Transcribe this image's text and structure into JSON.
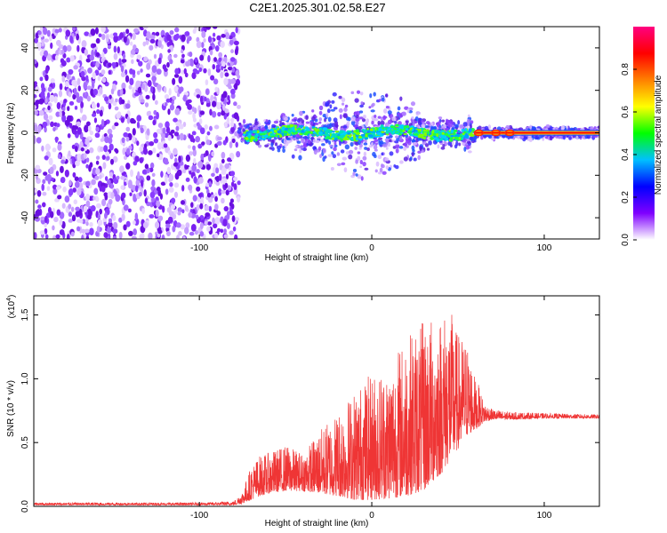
{
  "title": "C2E1.2025.301.02.58.E27",
  "chart_data": [
    {
      "type": "heatmap",
      "name": "spectrogram",
      "xlabel": "Height of straight line (km)",
      "ylabel": "Frequency (Hz)",
      "xlim": [
        -196,
        132
      ],
      "ylim": [
        -50,
        50
      ],
      "xticks": [
        -100,
        0,
        100
      ],
      "xtick_labels": [
        "-100",
        "0",
        "100"
      ],
      "yticks": [
        -40,
        -20,
        0,
        20,
        40
      ],
      "ytick_labels": [
        "-40",
        "-20",
        "0",
        "20",
        "40"
      ],
      "noise_region": [
        -196,
        -77
      ],
      "signal_region": [
        -77,
        132
      ],
      "signal_center_hz": 0,
      "colorbar": {
        "label": "Normalized spectral amplitude",
        "range": [
          0,
          1
        ],
        "ticks": [
          0.0,
          0.2,
          0.4,
          0.6,
          0.8
        ],
        "tick_labels": [
          "0.0",
          "0.2",
          "0.4",
          "0.6",
          "0.8"
        ],
        "colors": [
          "#ffffff",
          "#7f00ff",
          "#0000ff",
          "#00c0ff",
          "#00ff00",
          "#ffff00",
          "#ff8000",
          "#ff0000",
          "#ff0080"
        ]
      }
    },
    {
      "type": "line",
      "name": "snr",
      "xlabel": "Height of straight line (km)",
      "ylabel": "SNR (10 * v/v)",
      "multiplier": "(x10",
      "multiplier_exp": "4",
      "multiplier_close": ")",
      "xlim": [
        -196,
        132
      ],
      "ylim": [
        0,
        1.65
      ],
      "xticks": [
        -100,
        0,
        100
      ],
      "xtick_labels": [
        "-100",
        "0",
        "100"
      ],
      "yticks": [
        0.0,
        0.5,
        1.0,
        1.5
      ],
      "ytick_labels": [
        "0.0",
        "0.5",
        "1.0",
        "1.5"
      ],
      "line_color": "#ef3535",
      "envelope": {
        "x": [
          -196,
          -100,
          -80,
          -75,
          -70,
          -65,
          -60,
          -50,
          -40,
          -30,
          -20,
          -10,
          0,
          10,
          20,
          30,
          40,
          45,
          50,
          55,
          60,
          62,
          65,
          70,
          80,
          100,
          132
        ],
        "lo": [
          0.01,
          0.01,
          0.01,
          0.02,
          0.05,
          0.08,
          0.1,
          0.12,
          0.12,
          0.1,
          0.08,
          0.05,
          0.05,
          0.06,
          0.08,
          0.12,
          0.25,
          0.35,
          0.45,
          0.55,
          0.6,
          0.62,
          0.66,
          0.68,
          0.68,
          0.69,
          0.69
        ],
        "hi": [
          0.03,
          0.03,
          0.04,
          0.12,
          0.32,
          0.4,
          0.42,
          0.48,
          0.42,
          0.6,
          0.75,
          0.92,
          1.05,
          1.12,
          1.35,
          1.45,
          1.52,
          1.58,
          1.35,
          1.3,
          1.0,
          0.95,
          0.82,
          0.76,
          0.74,
          0.73,
          0.72
        ]
      }
    }
  ]
}
